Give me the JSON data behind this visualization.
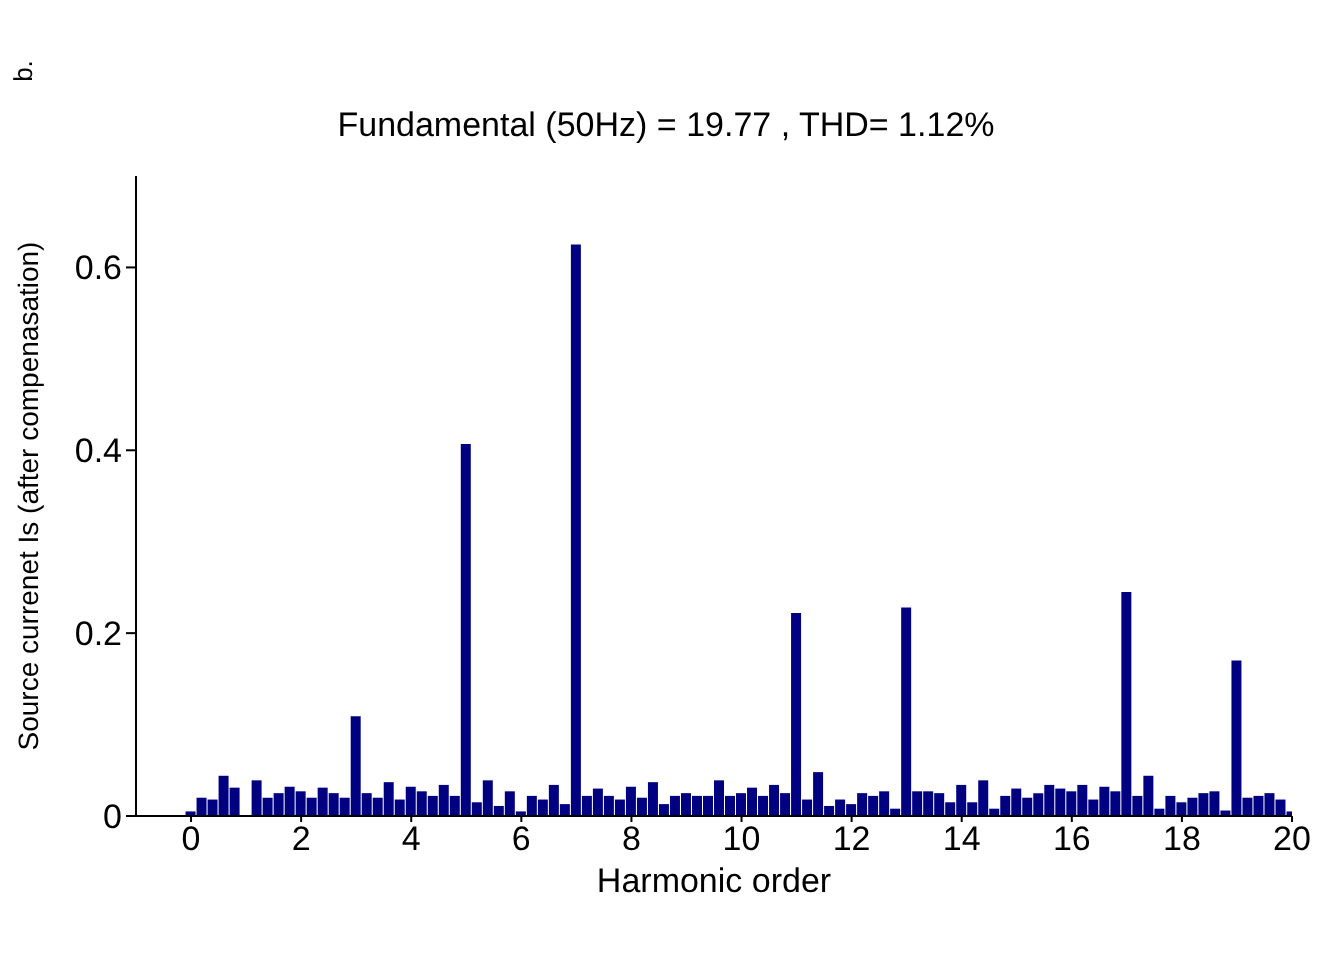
{
  "chart_data": {
    "type": "bar",
    "title": "Fundamental (50Hz) = 19.77 , THD= 1.12%",
    "xlabel": "Harmonic order",
    "ylabel": "Source currenet Is (after compenasation)",
    "annotations": [
      "b."
    ],
    "color": "#000080",
    "x": [
      0,
      0.2,
      0.4,
      0.6,
      0.8,
      1,
      1.2,
      1.4,
      1.6,
      1.8,
      2,
      2.2,
      2.4,
      2.6,
      2.8,
      3,
      3.2,
      3.4,
      3.6,
      3.8,
      4,
      4.2,
      4.4,
      4.6,
      4.8,
      5,
      5.2,
      5.4,
      5.6,
      5.8,
      6,
      6.2,
      6.4,
      6.6,
      6.8,
      7,
      7.2,
      7.4,
      7.6,
      7.8,
      8,
      8.2,
      8.4,
      8.6,
      8.8,
      9,
      9.2,
      9.4,
      9.6,
      9.8,
      10,
      10.2,
      10.4,
      10.6,
      10.8,
      11,
      11.2,
      11.4,
      11.6,
      11.8,
      12,
      12.2,
      12.4,
      12.6,
      12.8,
      13,
      13.2,
      13.4,
      13.6,
      13.8,
      14,
      14.2,
      14.4,
      14.6,
      14.8,
      15,
      15.2,
      15.4,
      15.6,
      15.8,
      16,
      16.2,
      16.4,
      16.6,
      16.8,
      17,
      17.2,
      17.4,
      17.6,
      17.8,
      18,
      18.2,
      18.4,
      18.6,
      18.8,
      19,
      19.2,
      19.4,
      19.6,
      19.8,
      20
    ],
    "values": [
      0.005,
      0.02,
      0.018,
      0.044,
      0.031,
      null,
      0.039,
      0.02,
      0.025,
      0.032,
      0.027,
      0.02,
      0.031,
      0.025,
      0.02,
      0.109,
      0.025,
      0.02,
      0.037,
      0.018,
      0.032,
      0.027,
      0.022,
      0.034,
      0.022,
      0.407,
      0.015,
      0.039,
      0.011,
      0.027,
      0.005,
      0.022,
      0.018,
      0.034,
      0.013,
      0.625,
      0.022,
      0.03,
      0.022,
      0.018,
      0.032,
      0.02,
      0.037,
      0.013,
      0.022,
      0.025,
      0.022,
      0.022,
      0.039,
      0.022,
      0.025,
      0.031,
      0.022,
      0.034,
      0.025,
      0.222,
      0.018,
      0.048,
      0.011,
      0.018,
      0.013,
      0.025,
      0.022,
      0.027,
      0.008,
      0.228,
      0.027,
      0.027,
      0.025,
      0.015,
      0.034,
      0.015,
      0.039,
      0.008,
      0.022,
      0.03,
      0.02,
      0.025,
      0.034,
      0.03,
      0.027,
      0.034,
      0.018,
      0.032,
      0.027,
      0.245,
      0.022,
      0.044,
      0.008,
      0.022,
      0.015,
      0.02,
      0.025,
      0.027,
      0.006,
      0.17,
      0.02,
      0.022,
      0.025,
      0.018,
      0.005
    ],
    "xlim": [
      -1,
      20
    ],
    "xticks": [
      0,
      2,
      4,
      6,
      8,
      10,
      12,
      14,
      16,
      18,
      20
    ],
    "ylim": [
      0,
      0.7
    ],
    "yticks": [
      0,
      0.2,
      0.4,
      0.6
    ],
    "grid": false,
    "legend": false
  }
}
